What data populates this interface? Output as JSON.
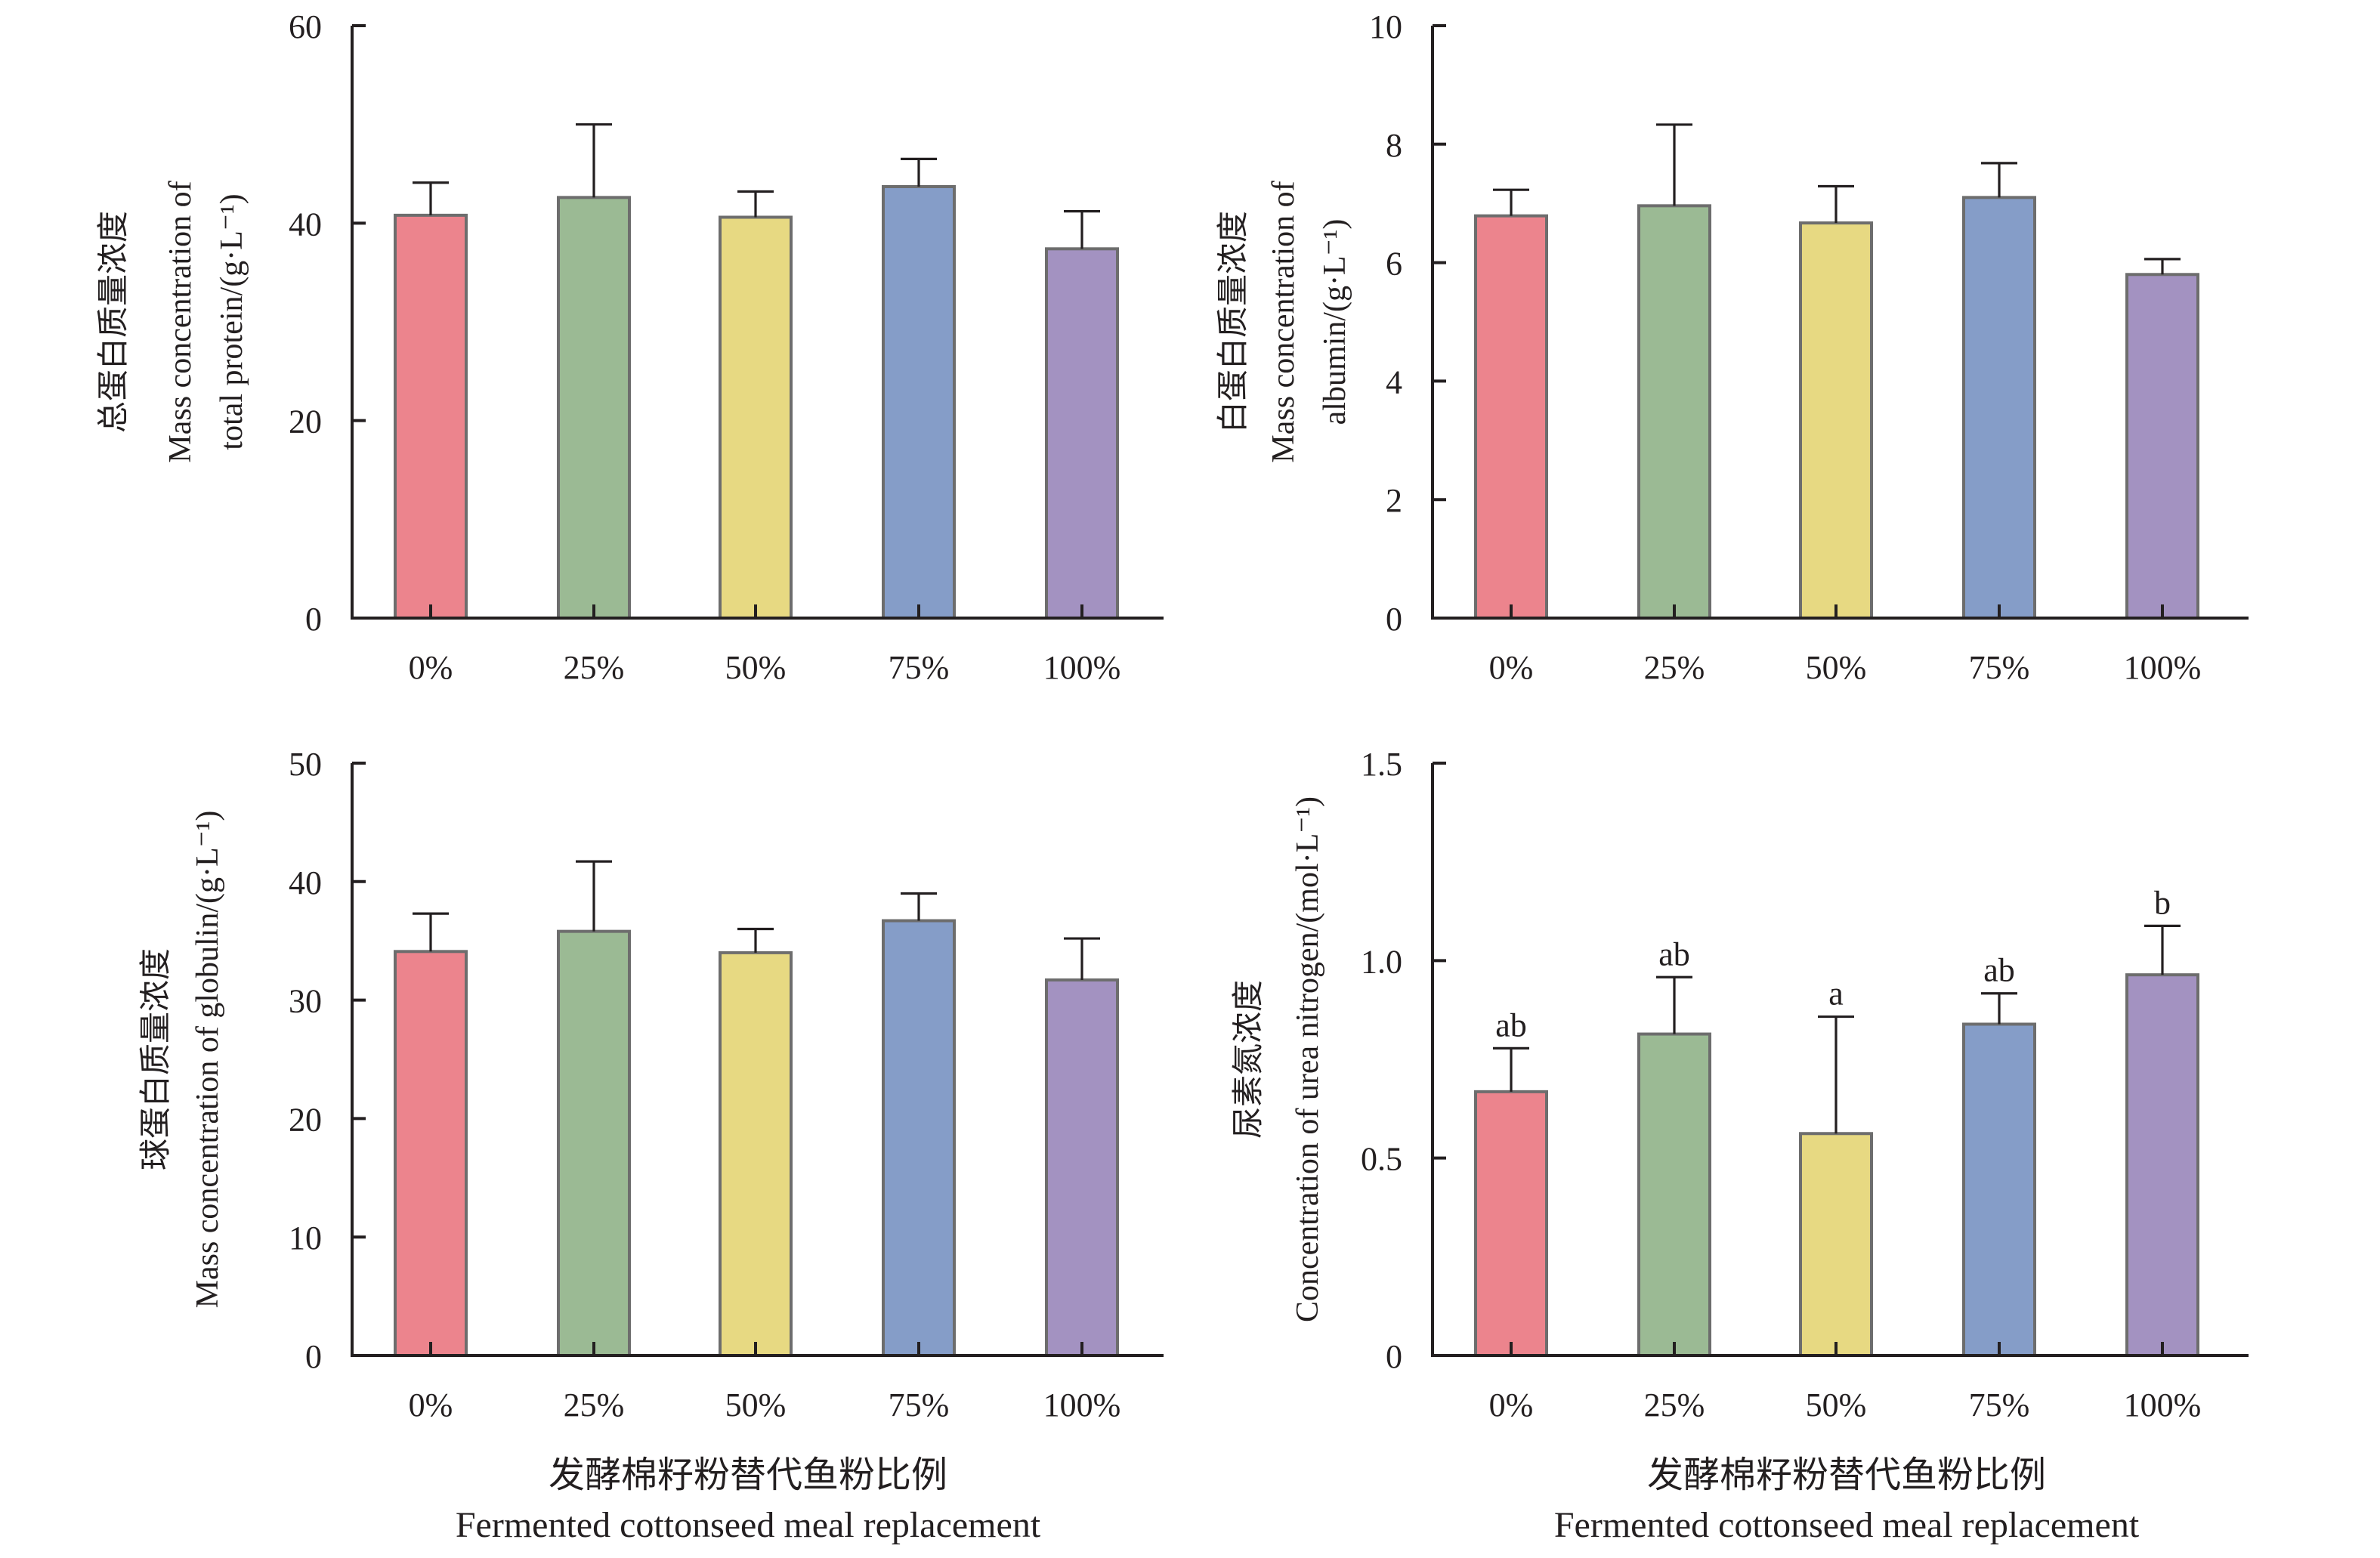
{
  "figure": {
    "bottom_label_cn": "发酵棉籽粉替代鱼粉比例",
    "bottom_label_en": "Fermented cottonseed meal replacement"
  },
  "colors": {
    "0%": "#EC848D",
    "25%": "#9BBA94",
    "50%": "#E7D982",
    "75%": "#859DC8",
    "100%": "#A392C1",
    "bar_border": "#6D6D6D",
    "axis": "#231F20"
  },
  "chart_data": [
    {
      "id": "total-protein",
      "type": "bar",
      "title": "",
      "position": "top-left",
      "ylabel_lines": [
        "总蛋白质量浓度",
        "Mass concentration of",
        "total protein/(g·L⁻¹)"
      ],
      "xlabel": "",
      "categories": [
        "0%",
        "25%",
        "50%",
        "75%",
        "100%"
      ],
      "values": [
        40.8,
        42.6,
        40.6,
        43.7,
        37.4
      ],
      "error_upper": [
        44.1,
        50.0,
        43.2,
        46.5,
        41.2
      ],
      "significance_labels": [
        "",
        "",
        "",
        "",
        ""
      ],
      "ylim": [
        0,
        60
      ],
      "yticks": [
        0,
        20,
        40,
        60
      ],
      "ytick_labels": [
        "0",
        "20",
        "40",
        "60"
      ],
      "grid": false
    },
    {
      "id": "albumin",
      "type": "bar",
      "title": "",
      "position": "top-right",
      "ylabel_lines": [
        "白蛋白质量浓度",
        "Mass concentration of",
        "albumin/(g·L⁻¹)"
      ],
      "xlabel": "",
      "categories": [
        "0%",
        "25%",
        "50%",
        "75%",
        "100%"
      ],
      "values": [
        6.79,
        6.96,
        6.67,
        7.1,
        5.8
      ],
      "error_upper": [
        7.23,
        8.33,
        7.29,
        7.68,
        6.06
      ],
      "significance_labels": [
        "",
        "",
        "",
        "",
        ""
      ],
      "ylim": [
        0,
        10
      ],
      "yticks": [
        0,
        2,
        4,
        6,
        8,
        10
      ],
      "ytick_labels": [
        "0",
        "2",
        "4",
        "6",
        "8",
        "10"
      ],
      "grid": false
    },
    {
      "id": "globulin",
      "type": "bar",
      "title": "",
      "position": "bottom-left",
      "ylabel_lines": [
        "球蛋白质量浓度",
        "Mass concentration of globulin/(g·L⁻¹)"
      ],
      "xlabel": "发酵棉籽粉替代鱼粉比例 Fermented cottonseed meal replacement",
      "categories": [
        "0%",
        "25%",
        "50%",
        "75%",
        "100%"
      ],
      "values": [
        34.1,
        35.8,
        34.0,
        36.7,
        31.7
      ],
      "error_upper": [
        37.3,
        41.7,
        36.0,
        39.0,
        35.2
      ],
      "significance_labels": [
        "",
        "",
        "",
        "",
        ""
      ],
      "ylim": [
        0,
        50
      ],
      "yticks": [
        0,
        10,
        20,
        30,
        40,
        50
      ],
      "ytick_labels": [
        "0",
        "10",
        "20",
        "30",
        "40",
        "50"
      ],
      "grid": false
    },
    {
      "id": "urea-nitrogen",
      "type": "bar",
      "title": "",
      "position": "bottom-right",
      "ylabel_lines": [
        "尿素氮浓度",
        "Concentration of urea nitrogen/(mol·L⁻¹)"
      ],
      "xlabel": "发酵棉籽粉替代鱼粉比例 Fermented cottonseed meal replacement",
      "categories": [
        "0%",
        "25%",
        "50%",
        "75%",
        "100%"
      ],
      "values": [
        0.668,
        0.814,
        0.562,
        0.839,
        0.964
      ],
      "error_upper": [
        0.778,
        0.958,
        0.858,
        0.917,
        1.088
      ],
      "significance_labels": [
        "ab",
        "ab",
        "a",
        "ab",
        "b"
      ],
      "ylim": [
        0,
        1.5
      ],
      "yticks": [
        0,
        0.5,
        1.0,
        1.5
      ],
      "ytick_labels": [
        "0",
        "0.5",
        "1.0",
        "1.5"
      ],
      "grid": false
    }
  ]
}
